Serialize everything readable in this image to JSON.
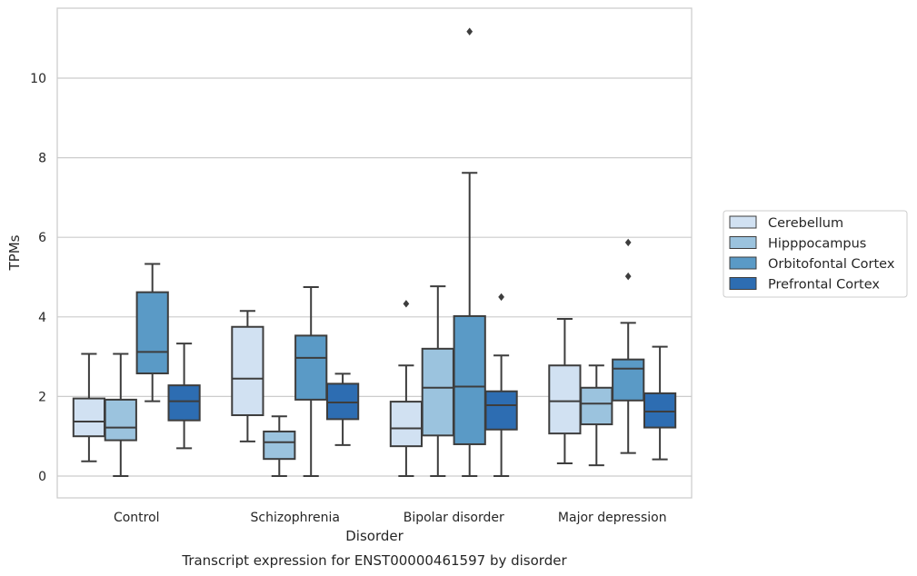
{
  "chart_data": {
    "type": "box",
    "title": "",
    "caption": "Transcript expression for ENST00000461597 by disorder",
    "xlabel": "Disorder",
    "ylabel": "TPMs",
    "ylim": [
      -0.5,
      11.75
    ],
    "yticks": [
      0,
      2,
      4,
      6,
      8,
      10
    ],
    "grid": true,
    "legend_position": "right",
    "categories": [
      "Control",
      "Schizophrenia",
      "Bipolar disorder",
      "Major depression"
    ],
    "series": [
      {
        "name": "Cerebellum",
        "color": "#d1e1f2",
        "boxes": [
          {
            "whislo": 0.37,
            "q1": 1.0,
            "med": 1.37,
            "q3": 1.95,
            "whishi": 3.07,
            "fliers": []
          },
          {
            "whislo": 0.87,
            "q1": 1.53,
            "med": 2.45,
            "q3": 3.75,
            "whishi": 4.15,
            "fliers": []
          },
          {
            "whislo": 0.0,
            "q1": 0.75,
            "med": 1.2,
            "q3": 1.87,
            "whishi": 2.78,
            "fliers": [
              4.33
            ]
          },
          {
            "whislo": 0.32,
            "q1": 1.07,
            "med": 1.88,
            "q3": 2.78,
            "whishi": 3.95,
            "fliers": []
          }
        ]
      },
      {
        "name": "Hipppocampus",
        "color": "#9bc3de",
        "boxes": [
          {
            "whislo": 0.0,
            "q1": 0.9,
            "med": 1.22,
            "q3": 1.92,
            "whishi": 3.07,
            "fliers": []
          },
          {
            "whislo": 0.0,
            "q1": 0.43,
            "med": 0.85,
            "q3": 1.12,
            "whishi": 1.5,
            "fliers": []
          },
          {
            "whislo": 0.0,
            "q1": 1.02,
            "med": 2.22,
            "q3": 3.2,
            "whishi": 4.77,
            "fliers": []
          },
          {
            "whislo": 0.27,
            "q1": 1.3,
            "med": 1.82,
            "q3": 2.22,
            "whishi": 2.78,
            "fliers": []
          }
        ]
      },
      {
        "name": "Orbitofontal Cortex",
        "color": "#5a9ac6",
        "boxes": [
          {
            "whislo": 1.88,
            "q1": 2.58,
            "med": 3.12,
            "q3": 4.62,
            "whishi": 5.33,
            "fliers": []
          },
          {
            "whislo": 0.0,
            "q1": 1.92,
            "med": 2.97,
            "q3": 3.53,
            "whishi": 4.75,
            "fliers": []
          },
          {
            "whislo": 0.0,
            "q1": 0.8,
            "med": 2.25,
            "q3": 4.02,
            "whishi": 7.62,
            "fliers": [
              11.17
            ]
          },
          {
            "whislo": 0.58,
            "q1": 1.9,
            "med": 2.7,
            "q3": 2.93,
            "whishi": 3.85,
            "fliers": [
              5.02,
              5.87
            ]
          }
        ]
      },
      {
        "name": "Prefrontal Cortex",
        "color": "#2d6db2",
        "boxes": [
          {
            "whislo": 0.7,
            "q1": 1.4,
            "med": 1.88,
            "q3": 2.28,
            "whishi": 3.33,
            "fliers": []
          },
          {
            "whislo": 0.78,
            "q1": 1.43,
            "med": 1.85,
            "q3": 2.32,
            "whishi": 2.57,
            "fliers": []
          },
          {
            "whislo": 0.0,
            "q1": 1.17,
            "med": 1.78,
            "q3": 2.13,
            "whishi": 3.03,
            "fliers": [
              4.5
            ]
          },
          {
            "whislo": 0.42,
            "q1": 1.22,
            "med": 1.62,
            "q3": 2.08,
            "whishi": 3.25,
            "fliers": []
          }
        ]
      }
    ]
  }
}
